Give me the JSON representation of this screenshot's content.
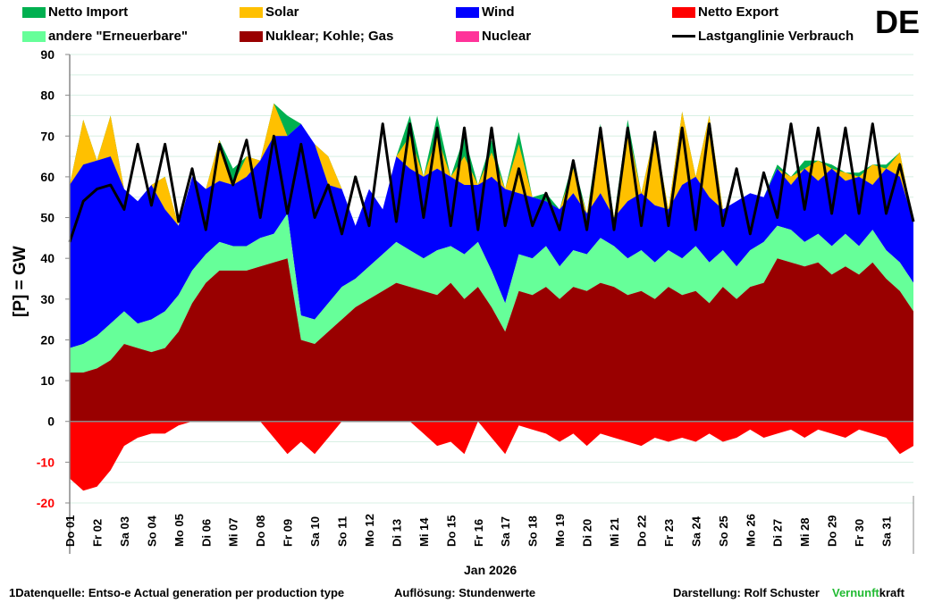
{
  "country": "DE",
  "legend": [
    {
      "key": "import",
      "label": "Netto Import",
      "color": "#00b050",
      "type": "area"
    },
    {
      "key": "solar",
      "label": "Solar",
      "color": "#ffc000",
      "type": "area"
    },
    {
      "key": "wind",
      "label": "Wind",
      "color": "#0000ff",
      "type": "area"
    },
    {
      "key": "export",
      "label": "Netto Export",
      "color": "#ff0000",
      "type": "area"
    },
    {
      "key": "renew",
      "label": "andere \"Erneuerbare\"",
      "color": "#66ff99",
      "type": "area"
    },
    {
      "key": "fossil",
      "label": "Nuklear; Kohle; Gas",
      "color": "#990000",
      "type": "area"
    },
    {
      "key": "nuclear",
      "label": "Nuclear",
      "color": "#ff3399",
      "type": "area"
    },
    {
      "key": "load",
      "label": "Lastganglinie Verbrauch",
      "color": "#000000",
      "type": "line"
    }
  ],
  "footer": {
    "source": "1Datenquelle: Entso-e  Actual generation per production type",
    "resolution": "Auflösung: Stundenwerte",
    "author": "Darstellung:  Rolf Schuster",
    "brand_green": "Vernunft",
    "brand_black": "kraft"
  },
  "chart_data": {
    "type": "area",
    "stacked": true,
    "title": "DE",
    "xlabel": "Jan 2026",
    "ylabel": "[P]  = GW",
    "ylim": [
      -20,
      90
    ],
    "yticks": [
      -20,
      -10,
      0,
      10,
      20,
      30,
      40,
      50,
      60,
      70,
      80,
      90
    ],
    "negative_tick_color": "#ff0000",
    "grid": true,
    "x_unit": "day",
    "xlim": [
      0,
      31
    ],
    "categories": [
      "Do 01",
      "Fr 02",
      "Sa 03",
      "So 04",
      "Mo 05",
      "Di 06",
      "Mi 07",
      "Do 08",
      "Fr 09",
      "Sa 10",
      "So 11",
      "Mo 12",
      "Di 13",
      "Mi 14",
      "Do 15",
      "Fr 16",
      "Sa 17",
      "So 18",
      "Mo 19",
      "Di 20",
      "Mi 21",
      "Do 22",
      "Fr 23",
      "Sa 24",
      "So 25",
      "Mo 26",
      "Di 27",
      "Mi 28",
      "Do 29",
      "Fr 30",
      "Sa 31"
    ],
    "x": [
      0,
      0.5,
      1,
      1.5,
      2,
      2.5,
      3,
      3.5,
      4,
      4.5,
      5,
      5.5,
      6,
      6.5,
      7,
      7.5,
      8,
      8.5,
      9,
      9.5,
      10,
      10.5,
      11,
      11.5,
      12,
      12.5,
      13,
      13.5,
      14,
      14.5,
      15,
      15.5,
      16,
      16.5,
      17,
      17.5,
      18,
      18.5,
      19,
      19.5,
      20,
      20.5,
      21,
      21.5,
      22,
      22.5,
      23,
      23.5,
      24,
      24.5,
      25,
      25.5,
      26,
      26.5,
      27,
      27.5,
      28,
      28.5,
      29,
      29.5,
      30,
      30.5,
      31
    ],
    "series": [
      {
        "name": "Nuklear; Kohle; Gas",
        "key": "fossil",
        "values": [
          12,
          12,
          13,
          15,
          19,
          18,
          17,
          18,
          22,
          29,
          34,
          37,
          37,
          37,
          38,
          39,
          40,
          20,
          19,
          22,
          25,
          28,
          30,
          32,
          34,
          33,
          32,
          31,
          34,
          30,
          33,
          28,
          22,
          32,
          31,
          33,
          30,
          33,
          32,
          34,
          33,
          31,
          32,
          30,
          33,
          31,
          32,
          29,
          33,
          30,
          33,
          34,
          40,
          39,
          38,
          39,
          36,
          38,
          36,
          39,
          35,
          32,
          27
        ]
      },
      {
        "name": "andere \"Erneuerbare\"",
        "key": "renew",
        "values": [
          18,
          19,
          21,
          24,
          27,
          24,
          25,
          27,
          31,
          37,
          41,
          44,
          43,
          43,
          45,
          46,
          51,
          26,
          25,
          29,
          33,
          35,
          38,
          41,
          44,
          42,
          40,
          42,
          43,
          41,
          44,
          37,
          29,
          41,
          40,
          43,
          38,
          42,
          41,
          45,
          43,
          40,
          42,
          39,
          42,
          40,
          43,
          39,
          42,
          38,
          42,
          44,
          48,
          47,
          44,
          46,
          43,
          46,
          43,
          47,
          42,
          39,
          34
        ]
      },
      {
        "name": "Wind",
        "key": "wind",
        "values": [
          58,
          63,
          64,
          65,
          57,
          54,
          58,
          52,
          48,
          60,
          57,
          59,
          58,
          60,
          64,
          70,
          70,
          73,
          68,
          58,
          57,
          48,
          57,
          52,
          65,
          62,
          60,
          62,
          60,
          58,
          58,
          60,
          57,
          56,
          55,
          54,
          52,
          56,
          51,
          56,
          50,
          54,
          56,
          53,
          52,
          58,
          60,
          55,
          52,
          54,
          56,
          55,
          62,
          58,
          62,
          59,
          62,
          59,
          60,
          58,
          62,
          60,
          49
        ]
      },
      {
        "name": "Solar",
        "key": "solar",
        "values": [
          0,
          11,
          0,
          10,
          0,
          0,
          0,
          8,
          0,
          0,
          0,
          10,
          0,
          5,
          0,
          8,
          0,
          0,
          0,
          7,
          0,
          0,
          0,
          0,
          0,
          8,
          0,
          8,
          0,
          7,
          0,
          6,
          0,
          12,
          0,
          0,
          0,
          6,
          0,
          15,
          0,
          18,
          0,
          18,
          0,
          18,
          0,
          20,
          0,
          0,
          0,
          0,
          0,
          2,
          0,
          5,
          0,
          2,
          0,
          5,
          0,
          6,
          0
        ]
      },
      {
        "name": "Netto Import",
        "key": "import",
        "values": [
          0,
          0,
          0,
          0,
          0,
          0,
          0,
          0,
          0,
          0,
          0,
          0,
          4,
          0,
          0,
          0,
          5,
          0,
          0,
          0,
          0,
          0,
          0,
          0,
          0,
          5,
          0,
          5,
          0,
          5,
          0,
          3,
          0,
          3,
          0,
          2,
          0,
          2,
          0,
          2,
          0,
          2,
          0,
          0,
          0,
          0,
          0,
          0,
          0,
          0,
          0,
          0,
          1,
          0,
          2,
          0,
          1,
          0,
          1,
          0,
          1,
          0,
          0
        ]
      },
      {
        "name": "Nuclear",
        "key": "nuclear",
        "values": [
          0,
          0,
          0,
          0,
          0,
          0,
          0,
          0,
          0,
          0,
          0,
          0,
          0,
          0,
          0,
          0,
          0,
          0,
          0,
          0,
          0,
          0,
          0,
          0,
          0,
          0,
          0,
          0,
          0,
          0,
          0,
          0,
          0,
          0,
          0,
          0,
          0,
          0,
          0,
          0,
          0,
          0,
          0,
          0,
          0,
          0,
          0,
          0,
          0,
          0,
          0,
          0,
          0,
          0,
          0,
          0,
          0,
          0,
          0,
          0,
          0,
          0,
          0
        ]
      },
      {
        "name": "Netto Export",
        "key": "export",
        "values": [
          -14,
          -17,
          -16,
          -12,
          -6,
          -4,
          -3,
          -3,
          -1,
          0,
          0,
          0,
          0,
          0,
          0,
          -4,
          -8,
          -5,
          -8,
          -4,
          0,
          0,
          0,
          0,
          0,
          0,
          -3,
          -6,
          -5,
          -8,
          0,
          -4,
          -8,
          -1,
          -2,
          -3,
          -5,
          -3,
          -6,
          -3,
          -4,
          -5,
          -6,
          -4,
          -5,
          -4,
          -5,
          -3,
          -5,
          -4,
          -2,
          -4,
          -3,
          -2,
          -4,
          -2,
          -3,
          -4,
          -2,
          -3,
          -4,
          -8,
          -6
        ]
      },
      {
        "name": "Lastganglinie Verbrauch",
        "key": "load",
        "type": "line",
        "values": [
          44,
          54,
          57,
          58,
          52,
          68,
          53,
          68,
          49,
          62,
          47,
          68,
          58,
          69,
          50,
          70,
          51,
          68,
          50,
          58,
          46,
          60,
          48,
          73,
          49,
          73,
          50,
          72,
          48,
          72,
          47,
          72,
          48,
          62,
          48,
          56,
          47,
          64,
          47,
          72,
          47,
          72,
          48,
          71,
          48,
          72,
          47,
          73,
          48,
          62,
          46,
          61,
          50,
          73,
          52,
          72,
          51,
          72,
          51,
          73,
          51,
          63,
          49
        ]
      }
    ]
  }
}
